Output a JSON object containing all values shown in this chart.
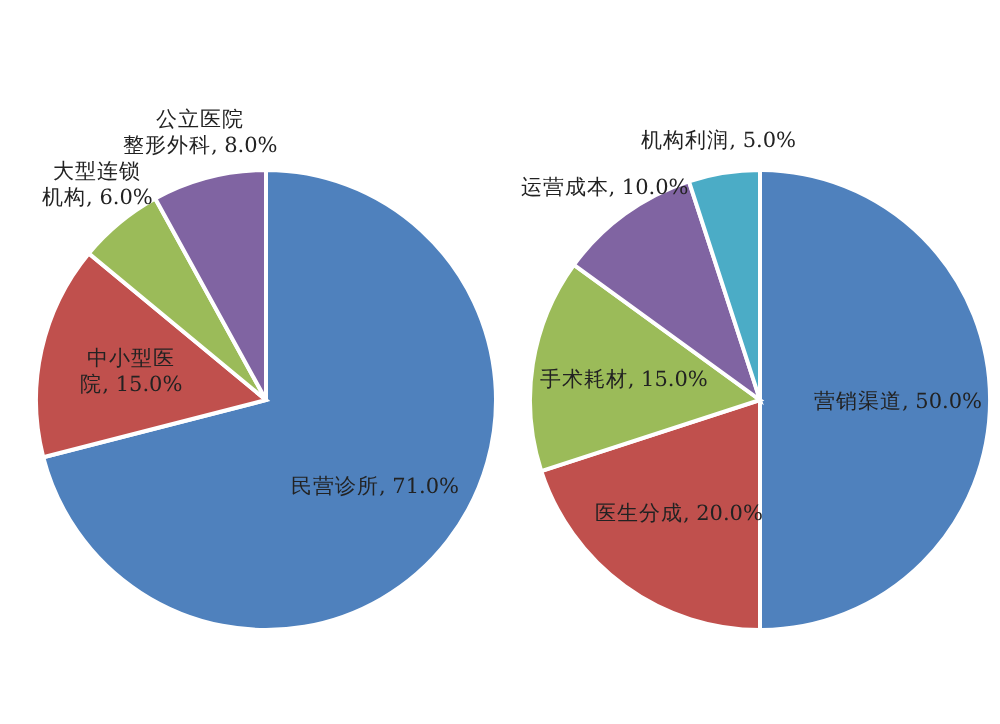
{
  "chart_data": [
    {
      "type": "pie",
      "categories": [
        "民营诊所",
        "中小型医院",
        "大型连锁机构",
        "公立医院整形外科"
      ],
      "values": [
        71,
        15,
        6,
        8
      ],
      "value_labels": [
        "71.0%",
        "15.0%",
        "6.0%",
        "8.0%"
      ],
      "colors": [
        "#4f81bd",
        "#c0504d",
        "#9bbb59",
        "#8064a2"
      ]
    },
    {
      "type": "pie",
      "categories": [
        "营销渠道",
        "医生分成",
        "手术耗材",
        "运营成本",
        "机构利润"
      ],
      "values": [
        50,
        20,
        15,
        10,
        5
      ],
      "value_labels": [
        "50.0%",
        "20.0%",
        "15.0%",
        "10.0%",
        "5.0%"
      ],
      "colors": [
        "#4f81bd",
        "#c0504d",
        "#9bbb59",
        "#8064a2",
        "#4bacc6"
      ]
    }
  ]
}
